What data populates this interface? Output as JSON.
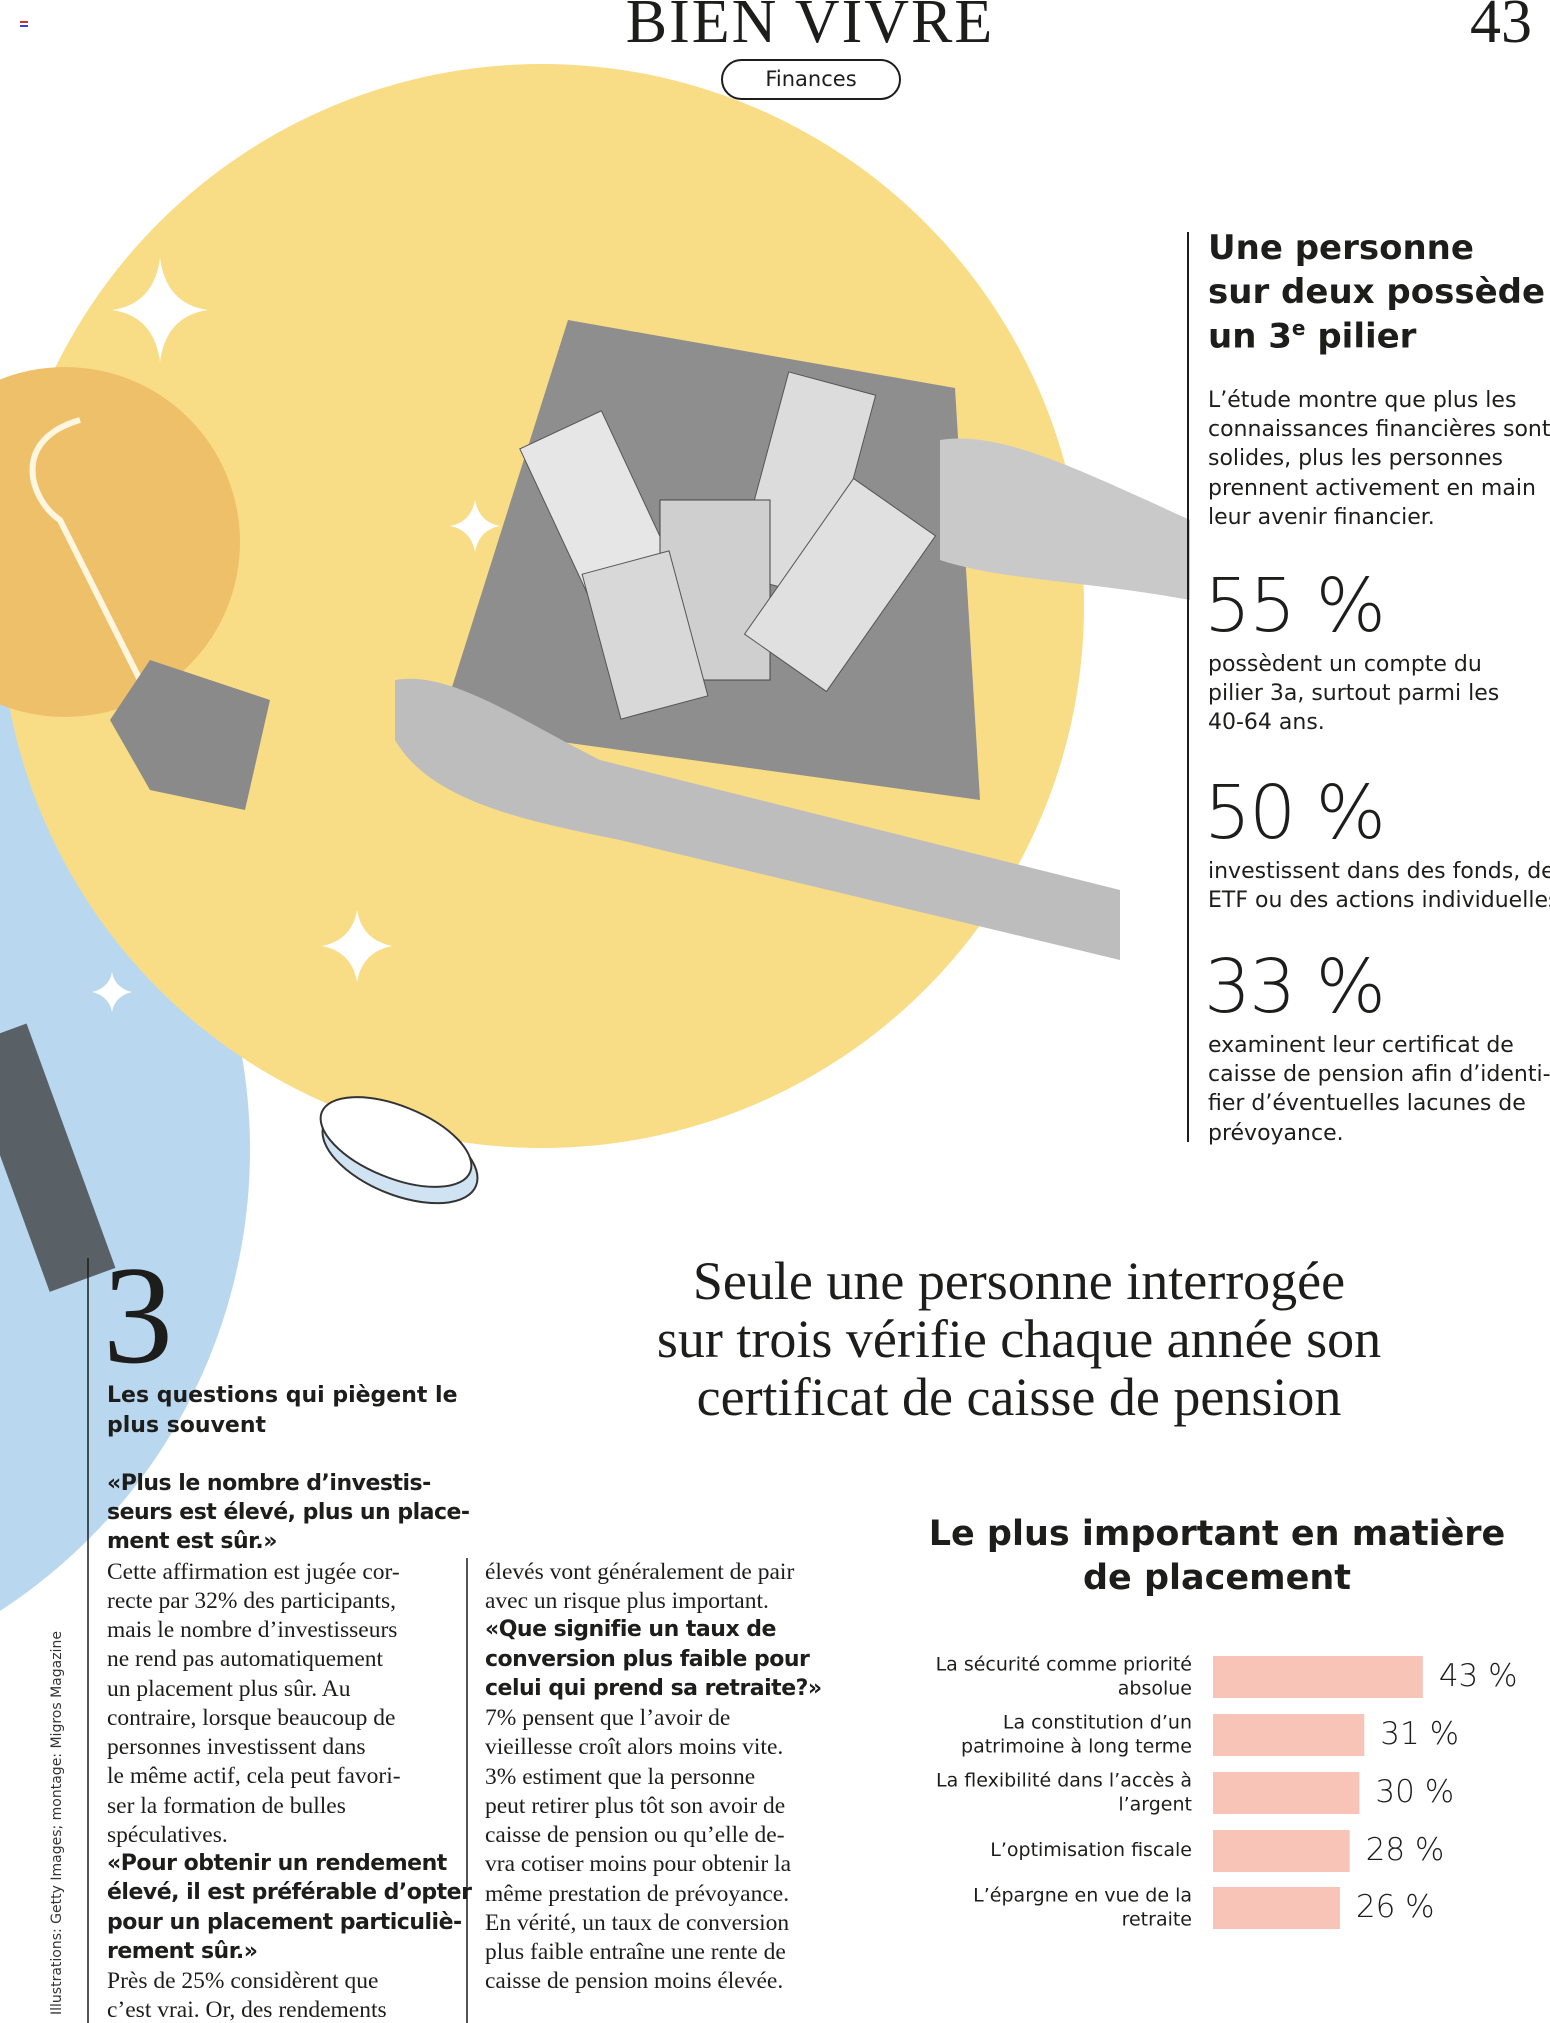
{
  "header": {
    "title": "BIEN VIVRE",
    "page_number": "43",
    "section": "Finances"
  },
  "sidebar": {
    "heading_lines": [
      "Une personne",
      "sur deux possède"
    ],
    "heading_last": {
      "before": "un 3",
      "sup": "e",
      "after": " pilier"
    },
    "intro_lines": [
      "L’étude montre que plus les",
      "connaissances financières sont",
      "solides, plus les personnes",
      "prennent activement en main",
      "leur avenir financier."
    ],
    "stats": [
      {
        "value": "55 %",
        "lines": [
          "possèdent un compte du",
          "pilier 3a, surtout parmi les",
          "40-64 ans."
        ]
      },
      {
        "value": "50 %",
        "lines": [
          "investissent dans des fonds, des",
          "ETF ou des actions individuelles."
        ]
      },
      {
        "value": "33 %",
        "lines": [
          "examinent leur certificat de",
          "caisse de pension afin d’identi-",
          "fier d’éventuelles lacunes de",
          "prévoyance."
        ]
      }
    ]
  },
  "article": {
    "number": "3",
    "kicker_lines": [
      "Les questions qui piègent le",
      "plus souvent"
    ],
    "column_1": {
      "question_1": [
        "«Plus le nombre d’investis-",
        "seurs est élevé, plus un place-",
        "ment est sûr.»"
      ],
      "answer_1": [
        "Cette affirmation est jugée cor-",
        "recte par 32% des participants,",
        "mais le nombre d’investisseurs",
        "ne rend pas automatiquement",
        "un placement plus sûr. Au",
        "contraire, lorsque beaucoup de",
        "personnes investissent dans",
        "le même actif, cela peut favori-",
        "ser la formation de bulles",
        "spéculatives."
      ],
      "question_2": [
        "«Pour obtenir un rendement",
        "élevé, il est préférable d’opter",
        "pour un placement particuliè-",
        "rement sûr.»"
      ],
      "answer_2": [
        "Près de 25% considèrent que",
        "c’est vrai. Or, des rendements"
      ]
    },
    "column_2": {
      "answer_2": [
        "élevés vont généralement de pair",
        "avec un risque plus important."
      ],
      "question_3": [
        "«Que signifie un taux de",
        "conversion plus faible pour",
        "celui qui prend sa retraite?»"
      ],
      "answer_3": [
        "7% pensent que l’avoir de",
        "vieillesse croît alors moins vite.",
        "3% estiment que la personne",
        "peut retirer plus tôt son avoir de",
        "caisse de pension ou qu’elle de-",
        "vra cotiser moins pour obtenir la",
        "même prestation de prévoyance.",
        "En vérité, un taux de conversion",
        "plus faible entraîne une rente de",
        "caisse de pension moins élevée."
      ]
    }
  },
  "quote_lines": [
    "Seule une personne interrogée",
    "sur trois vérifie chaque année son",
    "certificat de caisse de pension"
  ],
  "credit": "Illustrations: Getty Images; montage: Migros Magazine",
  "chart_data": {
    "type": "bar",
    "orientation": "horizontal",
    "title": "Le plus important en matière de placement",
    "categories": [
      "La sécurité comme priorité absolue",
      "La constitution d’un patrimoine à long terme",
      "La flexibilité dans l’accès à l’argent",
      "L’optimisation fiscale",
      "L’épargne en vue de la retraite"
    ],
    "values": [
      43,
      31,
      30,
      28,
      26
    ],
    "value_labels": [
      "43 %",
      "31 %",
      "30 %",
      "28 %",
      "26 %"
    ],
    "color": "#f8c4b8"
  }
}
